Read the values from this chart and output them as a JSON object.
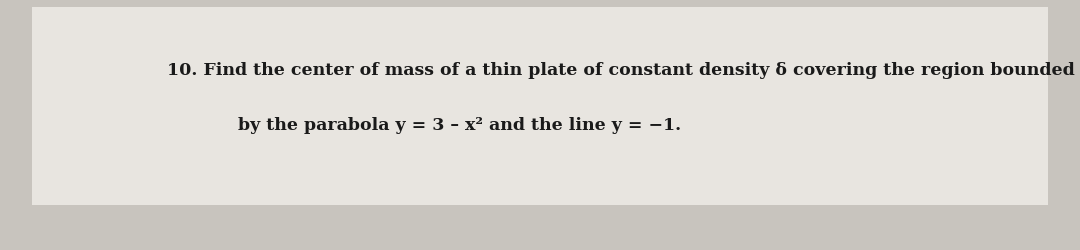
{
  "line1": "10. Find the center of mass of a thin plate of constant density δ covering the region bounded",
  "line2": "by the parabola y = 3 – x² and the line y = −1.",
  "background_color": "#c8c4be",
  "card_color": "#e8e5e0",
  "text_color": "#1a1a1a",
  "font_size": 12.5,
  "fig_width": 10.8,
  "fig_height": 2.51,
  "dpi": 100
}
